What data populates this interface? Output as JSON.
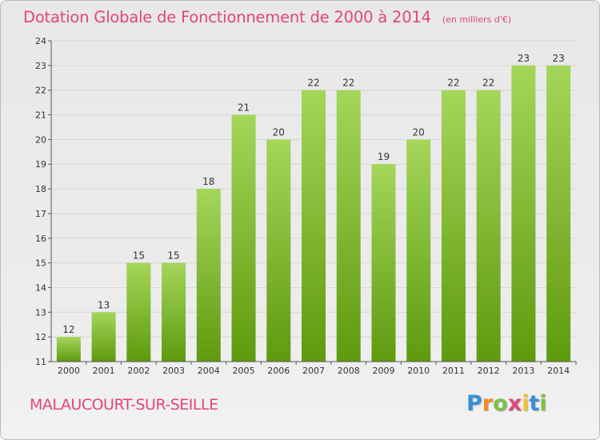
{
  "title": "Dotation Globale de Fonctionnement de 2000 à 2014",
  "unit": "(en milliers d'€)",
  "town": "MALAUCOURT-SUR-SEILLE",
  "logo": {
    "text": "Proxiti",
    "letters": [
      "P",
      "r",
      "o",
      "x",
      "i",
      "t",
      "i"
    ],
    "colors": [
      "#3a8fd8",
      "#f28c1e",
      "#7cc043",
      "#e0457b",
      "#f2c21e",
      "#3a8fd8",
      "#7cc043"
    ]
  },
  "colors": {
    "title": "#e0457b",
    "bar_top": "#a4d65a",
    "bar_bottom": "#5f9a0e",
    "axis": "#555555",
    "grid": "#d6d6d6"
  },
  "chart_data": {
    "type": "bar",
    "categories": [
      "2000",
      "2001",
      "2002",
      "2003",
      "2004",
      "2005",
      "2006",
      "2007",
      "2008",
      "2009",
      "2010",
      "2011",
      "2012",
      "2013",
      "2014"
    ],
    "values": [
      12,
      13,
      15,
      15,
      18,
      21,
      20,
      22,
      22,
      19,
      20,
      22,
      22,
      23,
      23
    ],
    "ylim": [
      11,
      24
    ],
    "yticks": [
      11,
      12,
      13,
      14,
      15,
      16,
      17,
      18,
      19,
      20,
      21,
      22,
      23,
      24
    ],
    "xlabel": "",
    "ylabel": "",
    "grid": true,
    "data_labels": true
  }
}
